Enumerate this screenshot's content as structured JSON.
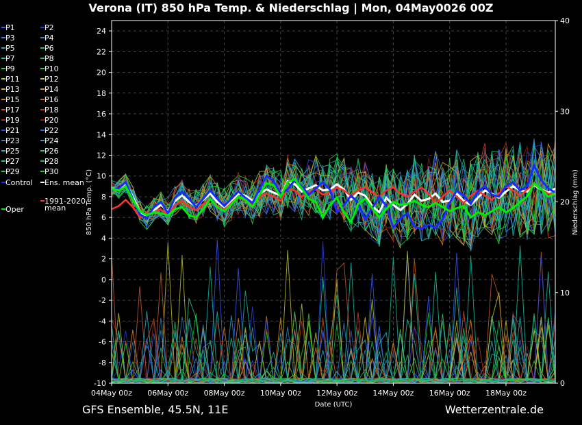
{
  "title": "Verona  (IT)  850 hPa Temp. & Niederschlag | Mon, 04May0026 00Z",
  "footer_left": "GFS Ensemble, 45.5N, 11E",
  "footer_right": "Wetterzentrale.de",
  "legend": {
    "members": [
      {
        "name": "P1",
        "color": "#3b5bff"
      },
      {
        "name": "P2",
        "color": "#1f3fe0"
      },
      {
        "name": "P3",
        "color": "#4a72ff"
      },
      {
        "name": "P4",
        "color": "#2a8ad6"
      },
      {
        "name": "P5",
        "color": "#28a6c8"
      },
      {
        "name": "P6",
        "color": "#16c0a4"
      },
      {
        "name": "P7",
        "color": "#1ac6b0"
      },
      {
        "name": "P8",
        "color": "#19c46e"
      },
      {
        "name": "P9",
        "color": "#2ecf50"
      },
      {
        "name": "P10",
        "color": "#3ad43a"
      },
      {
        "name": "P11",
        "color": "#c2c832"
      },
      {
        "name": "P12",
        "color": "#d8c030"
      },
      {
        "name": "P13",
        "color": "#e0a828"
      },
      {
        "name": "P14",
        "color": "#e89424"
      },
      {
        "name": "P15",
        "color": "#d87c28"
      },
      {
        "name": "P16",
        "color": "#c8602a"
      },
      {
        "name": "P17",
        "color": "#c84e26"
      },
      {
        "name": "P18",
        "color": "#b83a22"
      },
      {
        "name": "P19",
        "color": "#a82a1e"
      },
      {
        "name": "P20",
        "color": "#8a1a18"
      },
      {
        "name": "P21",
        "color": "#2c44e8"
      },
      {
        "name": "P22",
        "color": "#2c66d8"
      },
      {
        "name": "P23",
        "color": "#3480c8"
      },
      {
        "name": "P24",
        "color": "#2a9cc0"
      },
      {
        "name": "P25",
        "color": "#26b4c2"
      },
      {
        "name": "P26",
        "color": "#20c8a0"
      },
      {
        "name": "P27",
        "color": "#22c88a"
      },
      {
        "name": "P28",
        "color": "#1cc066"
      },
      {
        "name": "P29",
        "color": "#26c840"
      },
      {
        "name": "P30",
        "color": "#18d020"
      }
    ],
    "control": {
      "name": "Control",
      "color": "#1a2aff"
    },
    "ens_mean": {
      "name": "Ens. mean",
      "color": "#ffffff"
    },
    "oper": {
      "name": "Oper",
      "color": "#00ee00"
    },
    "climate": {
      "name1": "1991-2020",
      "name2": "mean",
      "color": "#ff3030"
    }
  },
  "chart_data": {
    "type": "line",
    "xlabel": "Date (UTC)",
    "ylabel_left": "850 hPa Temp. (°C)",
    "ylabel_right": "Niederschlag (mm)",
    "ylim_left": [
      -10,
      25
    ],
    "yticks_left": [
      -10,
      -8,
      -6,
      -4,
      -2,
      0,
      2,
      4,
      6,
      8,
      10,
      12,
      14,
      16,
      18,
      20,
      22,
      24
    ],
    "ylim_right": [
      0,
      40
    ],
    "yticks_right": [
      0,
      10,
      20,
      30,
      40
    ],
    "xticks": [
      "04May 00z",
      "06May 00z",
      "08May 00z",
      "10May 00z",
      "12May 00z",
      "14May 00z",
      "16May 00z",
      "18May 00z"
    ],
    "x_range_days": [
      0,
      15.75
    ],
    "grid": true,
    "timestep_hours": 6,
    "series": [
      {
        "name": "Ens. mean",
        "axis": "left",
        "color": "#ffffff",
        "values": [
          8.8,
          8.7,
          9.3,
          8.0,
          6.6,
          6.0,
          6.7,
          7.2,
          6.6,
          7.6,
          8.1,
          7.5,
          7.1,
          7.7,
          8.3,
          7.5,
          7.0,
          7.6,
          8.3,
          8.1,
          7.6,
          8.3,
          8.7,
          8.4,
          8.1,
          9.5,
          9.2,
          8.5,
          8.8,
          9.1,
          8.6,
          8.7,
          9.2,
          8.7,
          7.7,
          8.4,
          8.1,
          7.1,
          6.5,
          7.9,
          7.2,
          6.7,
          7.3,
          8.2,
          7.6,
          7.8,
          8.3,
          7.5,
          7.6,
          8.3,
          7.6,
          7.2,
          7.9,
          8.6,
          8.3,
          7.9,
          8.5,
          9.0,
          8.6,
          8.5,
          9.1,
          8.7,
          8.4,
          8.8
        ]
      },
      {
        "name": "1991-2020 mean",
        "axis": "left",
        "color": "#ff3030",
        "values": [
          6.8,
          7.1,
          7.7,
          7.0,
          6.0,
          6.1,
          6.5,
          6.8,
          6.2,
          7.2,
          7.6,
          7.0,
          6.7,
          7.3,
          7.8,
          7.1,
          6.7,
          7.4,
          8.0,
          7.6,
          7.2,
          8.0,
          8.3,
          8.0,
          7.6,
          8.8,
          8.6,
          8.0,
          8.4,
          8.7,
          8.2,
          8.4,
          8.9,
          8.6,
          8.1,
          8.6,
          8.9,
          8.4,
          8.0,
          8.6,
          8.9,
          8.3,
          8.0,
          8.5,
          8.9,
          8.3,
          7.3,
          8.0,
          8.6,
          8.0,
          7.4,
          8.1,
          8.6,
          8.1,
          7.7,
          8.3,
          9.0,
          8.6,
          8.1,
          8.7,
          9.2,
          8.7,
          8.3,
          8.2
        ]
      },
      {
        "name": "Control",
        "axis": "left",
        "color": "#1a2aff",
        "values": [
          8.7,
          8.8,
          9.4,
          7.8,
          6.3,
          5.9,
          7.0,
          7.5,
          6.4,
          7.9,
          8.5,
          7.8,
          7.0,
          7.8,
          8.6,
          7.8,
          7.1,
          7.8,
          8.5,
          7.9,
          7.4,
          8.7,
          10.0,
          9.5,
          8.3,
          8.7,
          9.6,
          9.0,
          8.2,
          8.8,
          9.4,
          8.7,
          6.5,
          7.2,
          8.1,
          7.4,
          5.8,
          6.9,
          8.0,
          7.1,
          5.0,
          5.9,
          6.4,
          5.1,
          4.9,
          5.3,
          5.0,
          5.8,
          7.4,
          8.6,
          8.1,
          7.3,
          8.5,
          9.0,
          8.2,
          8.0,
          9.0,
          9.4,
          8.6,
          9.0,
          11.0,
          9.6,
          8.8,
          8.4
        ]
      },
      {
        "name": "Oper",
        "axis": "left",
        "color": "#00ee00",
        "values": [
          8.8,
          8.6,
          9.0,
          7.7,
          6.6,
          6.2,
          6.5,
          6.4,
          6.2,
          6.8,
          7.0,
          6.2,
          6.0,
          6.8,
          7.8,
          7.0,
          6.6,
          7.3,
          8.0,
          7.7,
          7.0,
          8.2,
          9.3,
          9.1,
          8.0,
          9.4,
          9.7,
          8.8,
          7.8,
          7.5,
          6.0,
          7.2,
          7.9,
          6.5,
          5.5,
          7.3,
          7.8,
          6.9,
          6.0,
          6.8,
          7.5,
          7.2,
          7.3,
          7.6,
          7.2,
          7.0,
          7.4,
          7.0,
          6.6,
          6.9,
          7.1,
          6.0,
          6.5,
          6.2,
          6.6,
          7.0,
          6.5,
          6.9,
          7.5,
          8.0,
          9.3,
          8.7,
          8.0,
          8.3
        ]
      }
    ]
  }
}
